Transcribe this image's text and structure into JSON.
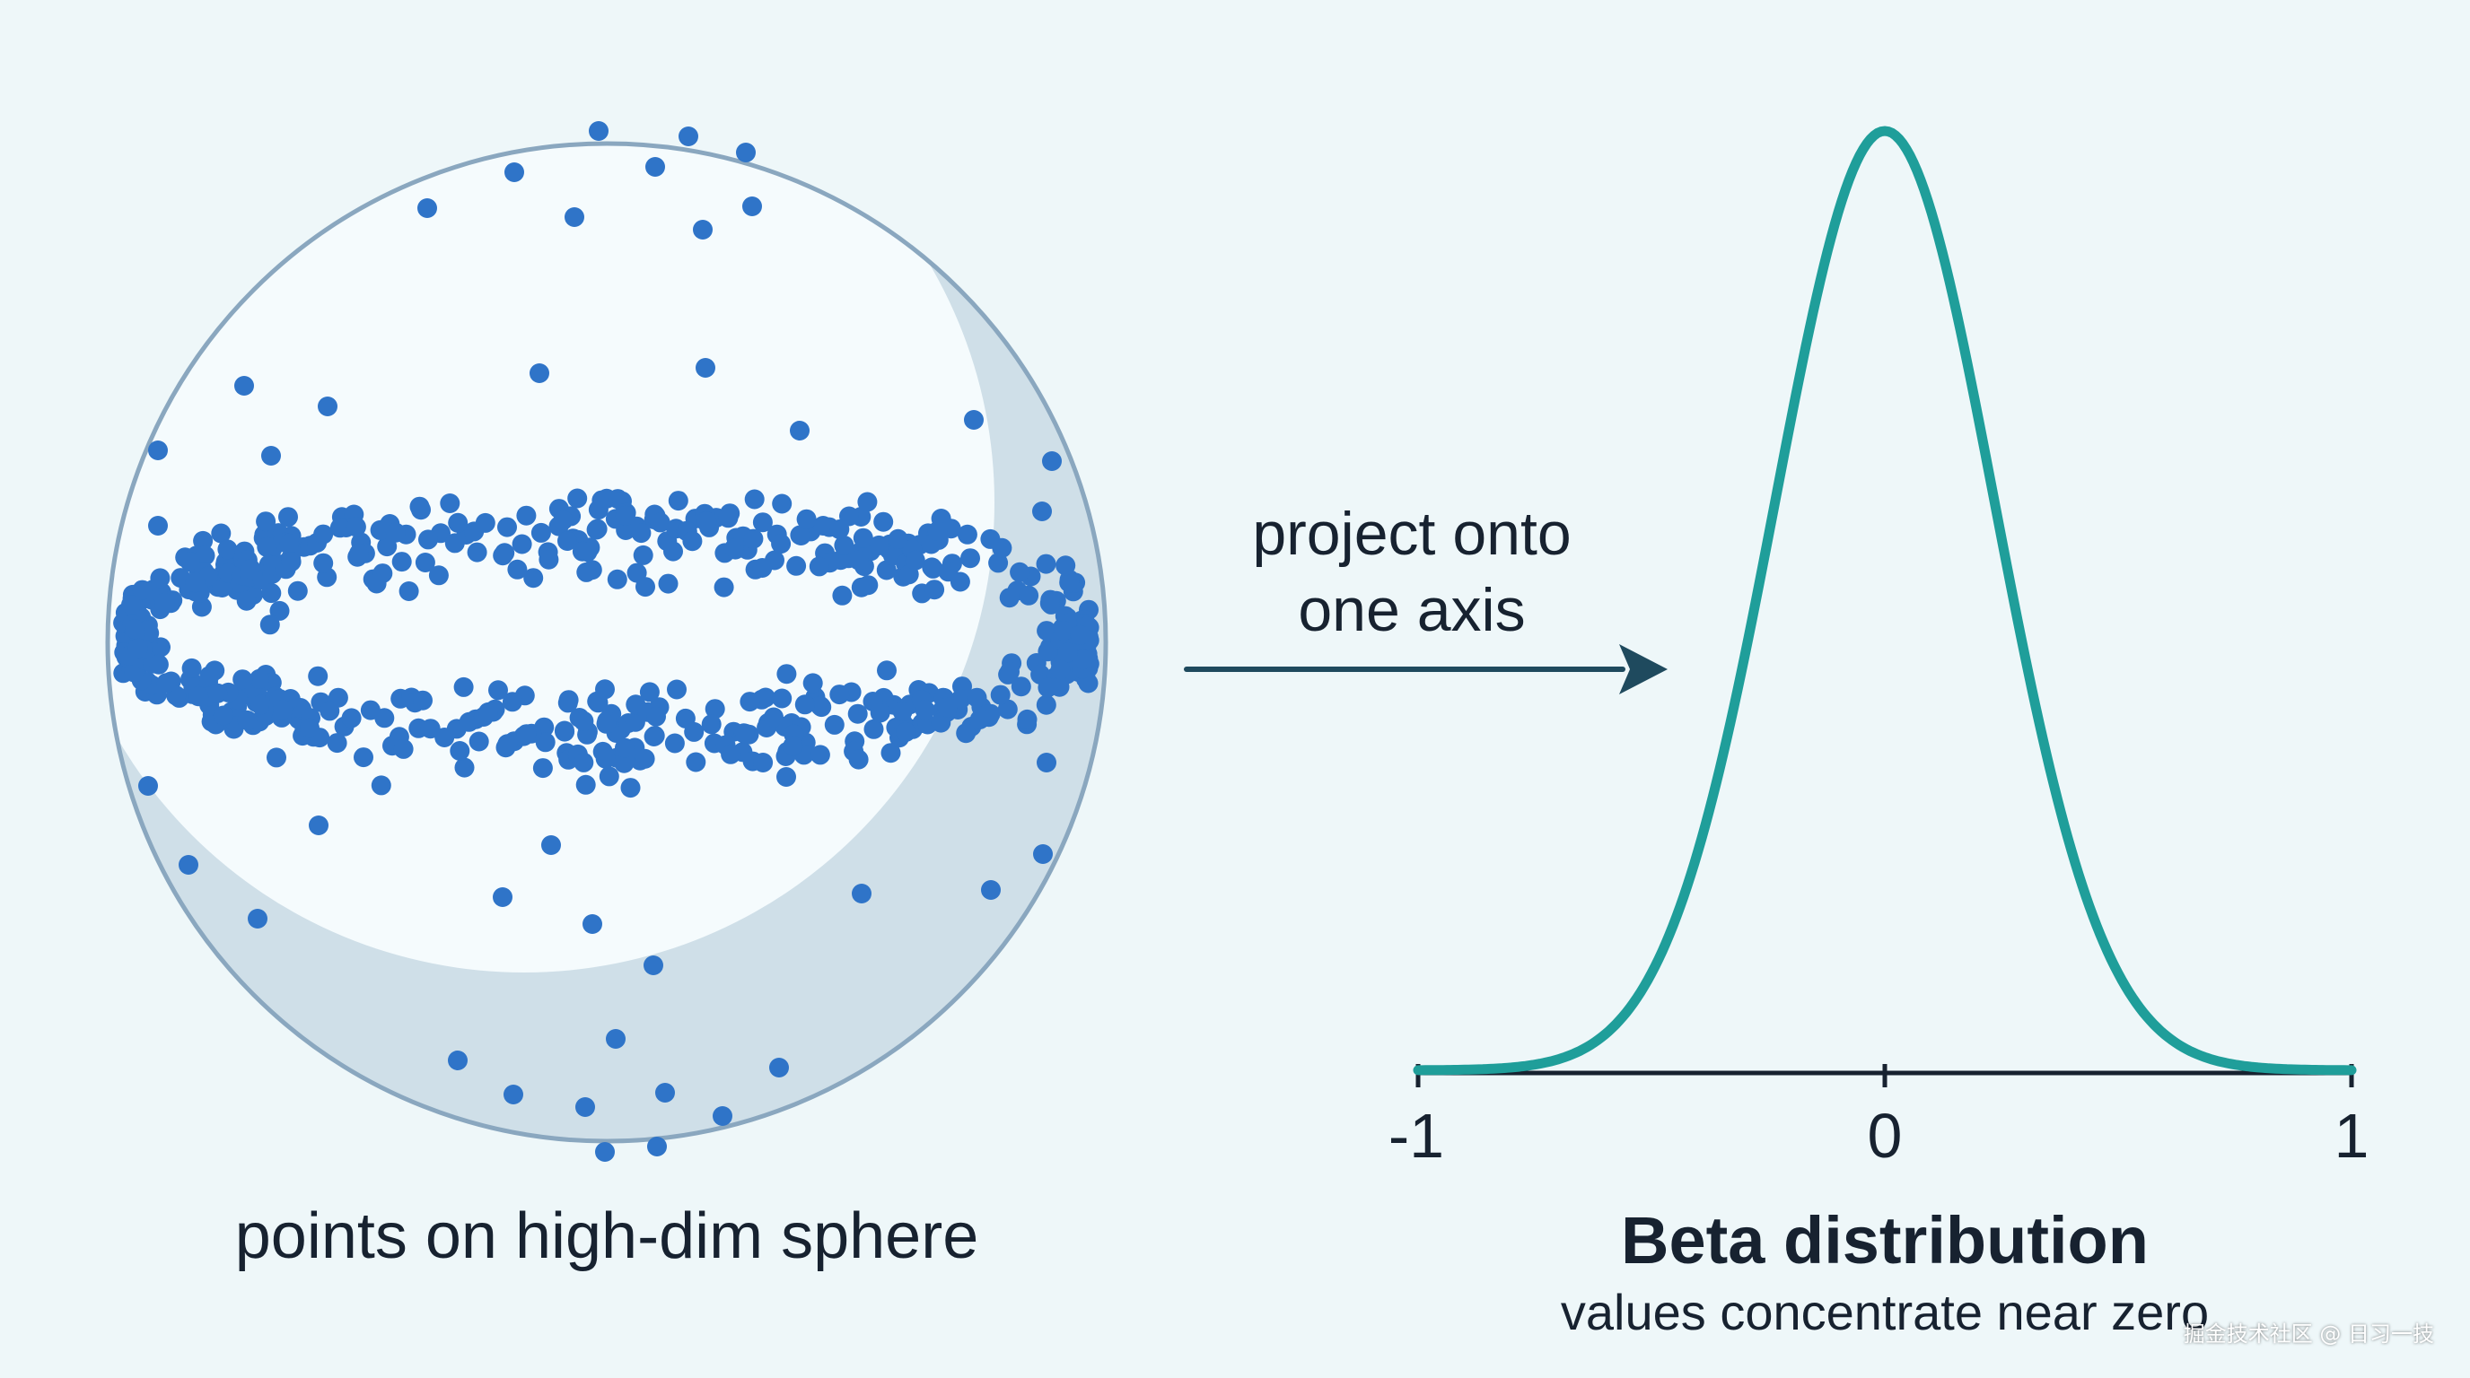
{
  "left_caption": "points on high-dim sphere",
  "arrow_label": [
    "project onto",
    "one axis"
  ],
  "axis_ticks": [
    "-1",
    "0",
    "1"
  ],
  "right_title": "Beta distribution",
  "right_subtitle": "values concentrate near zero",
  "watermark": "掘金技术社区 @ 日习一技",
  "colors": {
    "background": "#eef7f9",
    "points": "#2f74c8",
    "sphere_outline": "#8aa7bf",
    "sphere_shadow": "#c8d9e4",
    "curve": "#1f9e9a",
    "arrow": "#1f4a5e",
    "text": "#172230"
  },
  "icons": {
    "arrow": "right-arrow-icon",
    "sphere": "sphere-shape"
  }
}
